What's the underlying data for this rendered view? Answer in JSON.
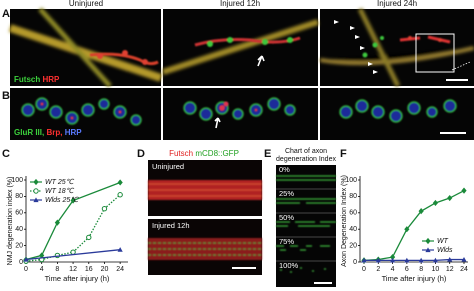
{
  "panels": {
    "A": {
      "letter": "A",
      "columns": [
        "Uninjured",
        "Injured 12h",
        "Injured 24h"
      ],
      "stain_1": "Futsch",
      "stain_2": "HRP"
    },
    "B": {
      "letter": "B",
      "stain_1": "GluR III,",
      "stain_2": "Brp,",
      "stain_3": "HRP"
    },
    "C": {
      "letter": "C"
    },
    "D": {
      "letter": "D",
      "stain_1": "Futsch",
      "stain_2": "mCD8::GFP",
      "rows": [
        "Uninjured",
        "Injured 12h"
      ]
    },
    "E": {
      "letter": "E",
      "title_lines": [
        "Chart of axon",
        "degeneration Index"
      ],
      "levels": [
        "0%",
        "25%",
        "50%",
        "75%",
        "100%"
      ]
    },
    "F": {
      "letter": "F"
    }
  },
  "chart_data": [
    {
      "type": "line",
      "xlabel": "Time after injury (h)",
      "ylabel": "NMJ degeneration index (%)",
      "xlim": [
        0,
        26
      ],
      "ylim": [
        0,
        100
      ],
      "xticks": [
        0,
        4,
        8,
        12,
        16,
        20,
        24
      ],
      "yticks": [
        0,
        20,
        40,
        60,
        80,
        100
      ],
      "legend": "upper left",
      "series": [
        {
          "name": "WT 25℃",
          "color": "#1a8a3a",
          "marker": "diamond",
          "dash": "solid",
          "x": [
            0,
            4,
            8,
            12,
            24
          ],
          "values": [
            3,
            8,
            48,
            75,
            97
          ]
        },
        {
          "name": "WT 18℃",
          "color": "#1a8a3a",
          "marker": "open-circle",
          "dash": "dotted",
          "x": [
            0,
            4,
            8,
            12,
            16,
            20,
            24
          ],
          "values": [
            1,
            3,
            8,
            12,
            30,
            65,
            82
          ]
        },
        {
          "name": "Wlds 25℃",
          "color": "#2a3a9a",
          "marker": "triangle",
          "dash": "solid",
          "x": [
            0,
            24
          ],
          "values": [
            3,
            15
          ]
        }
      ]
    },
    {
      "type": "line",
      "xlabel": "Time after injury (h)",
      "ylabel": "Axon Degeneration Index (%)",
      "categories": [
        "0",
        "2",
        "4",
        "6",
        "8",
        "10",
        "12",
        "24"
      ],
      "ylim": [
        0,
        100
      ],
      "yticks": [
        0,
        20,
        40,
        60,
        80,
        100
      ],
      "legend": "lower right",
      "series": [
        {
          "name": "WT",
          "color": "#1a8a3a",
          "marker": "diamond",
          "dash": "solid",
          "values": [
            2,
            3,
            6,
            40,
            62,
            72,
            78,
            87
          ]
        },
        {
          "name": "Wlds",
          "color": "#2a3a9a",
          "marker": "triangle",
          "dash": "solid",
          "values": [
            2,
            2,
            2,
            2,
            2,
            2,
            3,
            3
          ]
        }
      ]
    }
  ]
}
